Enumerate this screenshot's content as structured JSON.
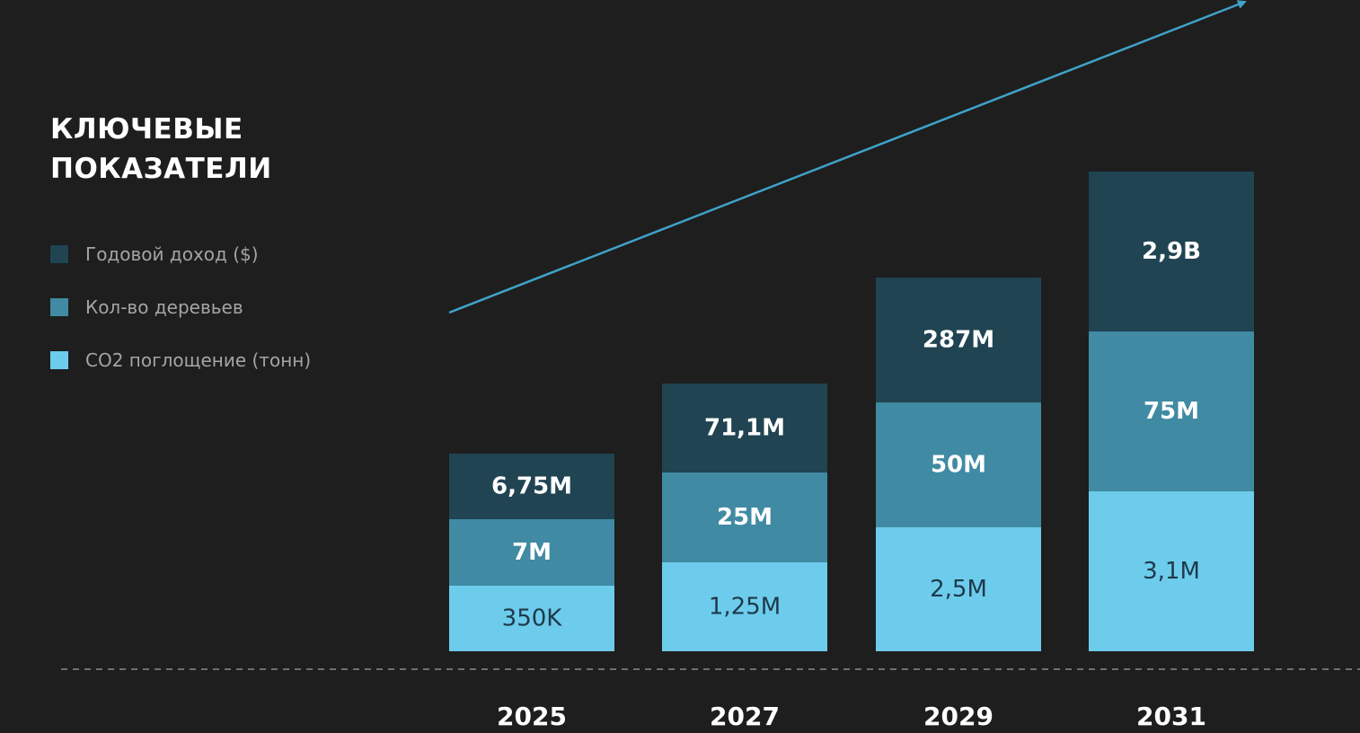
{
  "chart_data": {
    "type": "bar",
    "stacked": true,
    "title": "КЛЮЧЕВЫЕ ПОКАЗАТЕЛИ",
    "categories": [
      "2025",
      "2027",
      "2029",
      "2031"
    ],
    "series": [
      {
        "name": "CO2 поглощение (тонн)",
        "color": "#6dcbec",
        "labels": [
          "350K",
          "1,25M",
          "2,5M",
          "3,1M"
        ]
      },
      {
        "name": "Кол-во деревьев",
        "color": "#418aa4",
        "labels": [
          "7M",
          "25M",
          "50M",
          "75M"
        ]
      },
      {
        "name": "Годовой доход ($)",
        "color": "#204452",
        "labels": [
          "6,75M",
          "71,1M",
          "287M",
          "2,9B"
        ]
      }
    ],
    "legend_order": [
      2,
      1,
      0
    ],
    "legend_position": "left",
    "grid": false,
    "trend_arrow_color": "#3fa3c9",
    "baseline_style": "dashed"
  }
}
